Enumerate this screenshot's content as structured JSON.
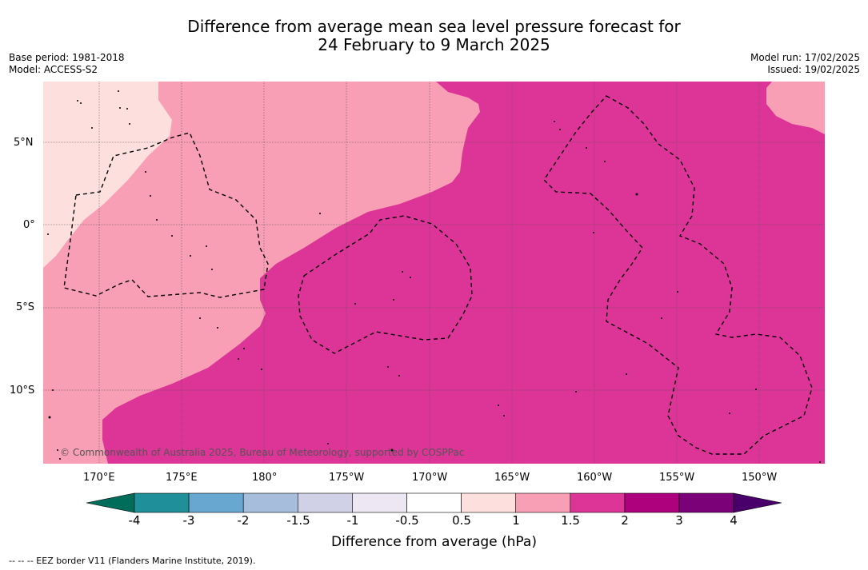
{
  "title": {
    "line1": "Difference from average mean sea level pressure forecast for",
    "line2": "24 February to 9 March 2025"
  },
  "meta_left": {
    "base_period": "Base period: 1981-2018",
    "model": "Model: ACCESS-S2"
  },
  "meta_right": {
    "model_run": "Model run: 17/02/2025",
    "issued": "Issued: 19/02/2025"
  },
  "map": {
    "lat_labels": [
      "5°N",
      "0°",
      "5°S",
      "10°S"
    ],
    "lon_labels": [
      "170°E",
      "175°E",
      "180°",
      "175°W",
      "170°W",
      "165°W",
      "160°W",
      "155°W",
      "150°W"
    ],
    "copyright": "© Commonwealth of Australia 2025, Bureau of Meteorology, supported by COSPPac",
    "colors": {
      "band_0_5_to_1": "#fde0dd",
      "band_1_to_1_5": "#f99fb5",
      "band_1_5_to_2": "#dd3497"
    }
  },
  "colorbar": {
    "ticks": [
      "-4",
      "-3",
      "-2",
      "-1.5",
      "-1",
      "-0.5",
      "0.5",
      "1",
      "1.5",
      "2",
      "3",
      "4"
    ],
    "colors": [
      "#006d5b",
      "#1f8f99",
      "#68a7cf",
      "#a6bddb",
      "#d0d1e6",
      "#ece7f2",
      "#ffffff",
      "#fde0dd",
      "#f99fb5",
      "#dd3497",
      "#ae017e",
      "#7a0177",
      "#49006a"
    ],
    "title": "Difference from average (hPa)"
  },
  "footer": {
    "legend": "--  --  -- EEZ border V11 (Flanders Marine Institute, 2019)."
  }
}
